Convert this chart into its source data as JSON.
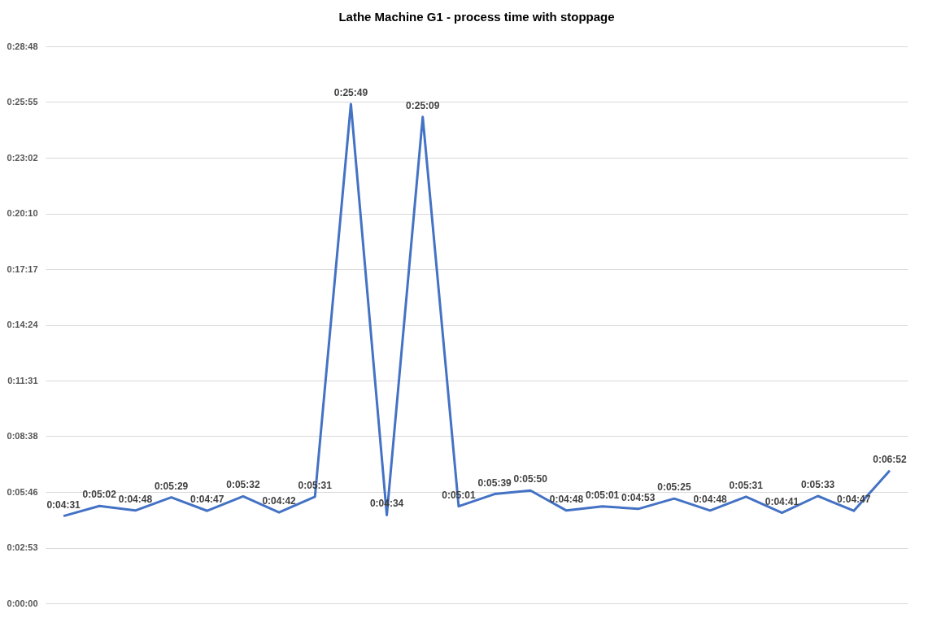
{
  "chart_data": {
    "type": "line",
    "title": "Lathe Machine G1 - process time with stoppage",
    "categories": [
      null,
      null,
      null,
      null,
      null,
      null,
      null,
      null,
      null,
      null,
      null,
      null,
      null,
      null,
      null,
      null,
      null,
      null,
      null,
      null,
      null,
      null,
      null,
      null
    ],
    "series": [
      {
        "color": "#4472c4",
        "values": [
          271,
          302,
          288,
          329,
          287,
          332,
          282,
          331,
          1549,
          274,
          1509,
          301,
          339,
          350,
          288,
          301,
          293,
          325,
          288,
          331,
          281,
          333,
          287,
          412
        ]
      }
    ],
    "value_labels": [
      "0:04:31",
      "0:05:02",
      "0:04:48",
      "0:05:29",
      "0:04:47",
      "0:05:32",
      "0:04:42",
      "0:05:31",
      "0:25:49",
      "0:04:34",
      "0:25:09",
      "0:05:01",
      "0:05:39",
      "0:05:50",
      "0:04:48",
      "0:05:01",
      "0:04:53",
      "0:05:25",
      "0:04:48",
      "0:05:31",
      "0:04:41",
      "0:05:33",
      "0:04:47",
      "0:06:52"
    ],
    "ylim": [
      0,
      1728
    ],
    "yticks": [
      {
        "value": 0,
        "label": "0:00:00"
      },
      {
        "value": 172.8,
        "label": "0:02:53"
      },
      {
        "value": 345.6,
        "label": "0:05:46"
      },
      {
        "value": 518.4,
        "label": "0:08:38"
      },
      {
        "value": 691.2,
        "label": "0:11:31"
      },
      {
        "value": 864,
        "label": "0:14:24"
      },
      {
        "value": 1036.8,
        "label": "0:17:17"
      },
      {
        "value": 1209.6,
        "label": "0:20:10"
      },
      {
        "value": 1382.4,
        "label": "0:23:02"
      },
      {
        "value": 1555.2,
        "label": "0:25:55"
      },
      {
        "value": 1728,
        "label": "0:28:48"
      }
    ],
    "grid": "y",
    "legend": false,
    "marker": "none",
    "line_style": "solid"
  }
}
